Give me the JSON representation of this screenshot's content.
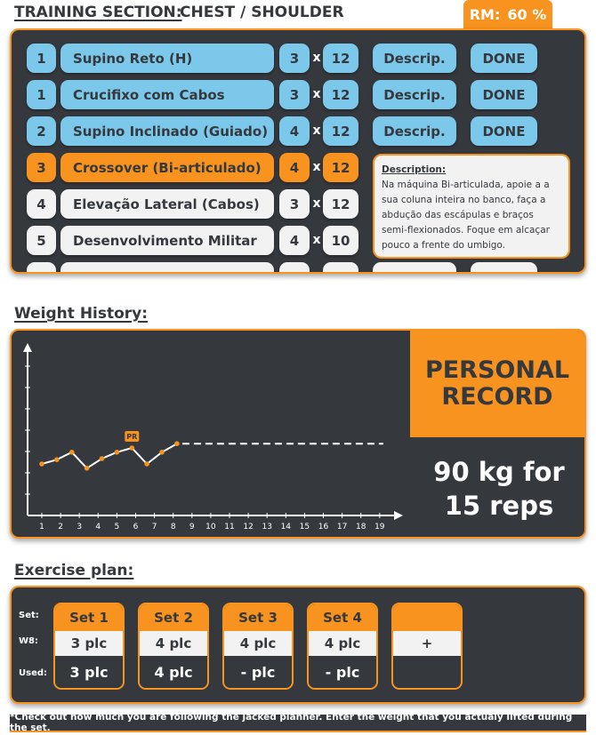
{
  "header": {
    "section_label": "TRAINING SECTION:",
    "section_value": "CHEST / SHOULDER",
    "rm_label": "RM:",
    "rm_value": "60 %"
  },
  "exercises": [
    {
      "num": "1",
      "name": "Supino Reto (H)",
      "sets": "3",
      "x": "x",
      "reps": "12",
      "descrip": "Descrip.",
      "done": "DONE",
      "state": "done"
    },
    {
      "num": "1",
      "name": "Crucifixo com Cabos",
      "sets": "3",
      "x": "x",
      "reps": "12",
      "descrip": "Descrip.",
      "done": "DONE",
      "state": "done"
    },
    {
      "num": "2",
      "name": "Supino Inclinado (Guiado)",
      "sets": "4",
      "x": "x",
      "reps": "12",
      "descrip": "Descrip.",
      "done": "DONE",
      "state": "done"
    },
    {
      "num": "3",
      "name": "Crossover (Bi-articulado)",
      "sets": "4",
      "x": "x",
      "reps": "12",
      "state": "active"
    },
    {
      "num": "4",
      "name": "Elevação Lateral (Cabos)",
      "sets": "3",
      "x": "x",
      "reps": "12",
      "state": "pending"
    },
    {
      "num": "5",
      "name": "Desenvolvimento Militar",
      "sets": "4",
      "x": "x",
      "reps": "10",
      "state": "pending"
    }
  ],
  "description": {
    "title": "Description:",
    "text": "Na máquina Bi-articulada, apoie a a sua coluna inteira no banco, faça a abdução das escápulas e braços semi-flexionados. Foque em alcaçar pouco a frente do umbigo."
  },
  "weight_history": {
    "label": "Weight History:",
    "pr_title_line1": "PERSONAL",
    "pr_title_line2": "RECORD",
    "pr_value_line1": "90 kg for",
    "pr_value_line2": "15 reps",
    "pr_marker": "PR"
  },
  "chart_data": {
    "type": "line",
    "x_ticks": [
      "1",
      "2",
      "3",
      "4",
      "5",
      "6",
      "7",
      "8",
      "9",
      "10",
      "11",
      "12",
      "13",
      "14",
      "15",
      "16",
      "17",
      "18",
      "19"
    ],
    "series": [
      {
        "values": [
          0.3,
          0.38,
          0.52,
          0.22,
          0.4,
          0.52,
          0.6,
          0.3,
          0.52,
          0.68
        ]
      }
    ],
    "pr_index": 6,
    "projection_value": 0.68,
    "colors": {
      "line": "#ffffff",
      "point": "#f7931e",
      "axis": "#ffffff"
    }
  },
  "plan": {
    "label": "Exercise plan:",
    "row_labels": {
      "set": "Set:",
      "w8": "W8:",
      "used": "Used:"
    },
    "sets": [
      {
        "name": "Set 1",
        "w8": "3 plc",
        "used": "3 plc"
      },
      {
        "name": "Set 2",
        "w8": "4 plc",
        "used": "4 plc"
      },
      {
        "name": "Set 3",
        "w8": "4 plc",
        "used": "- plc"
      },
      {
        "name": "Set 4",
        "w8": "4 plc",
        "used": "- plc"
      }
    ],
    "add_label": "+"
  },
  "footer": "*Check out how much you are following the jacked planner. Enter the weight that you actualy lifted during the set.",
  "colors": {
    "accent": "#f7931e",
    "panel": "#35393e",
    "pill_blue": "#7cc8ea",
    "pill_white": "#f2f2f2"
  }
}
